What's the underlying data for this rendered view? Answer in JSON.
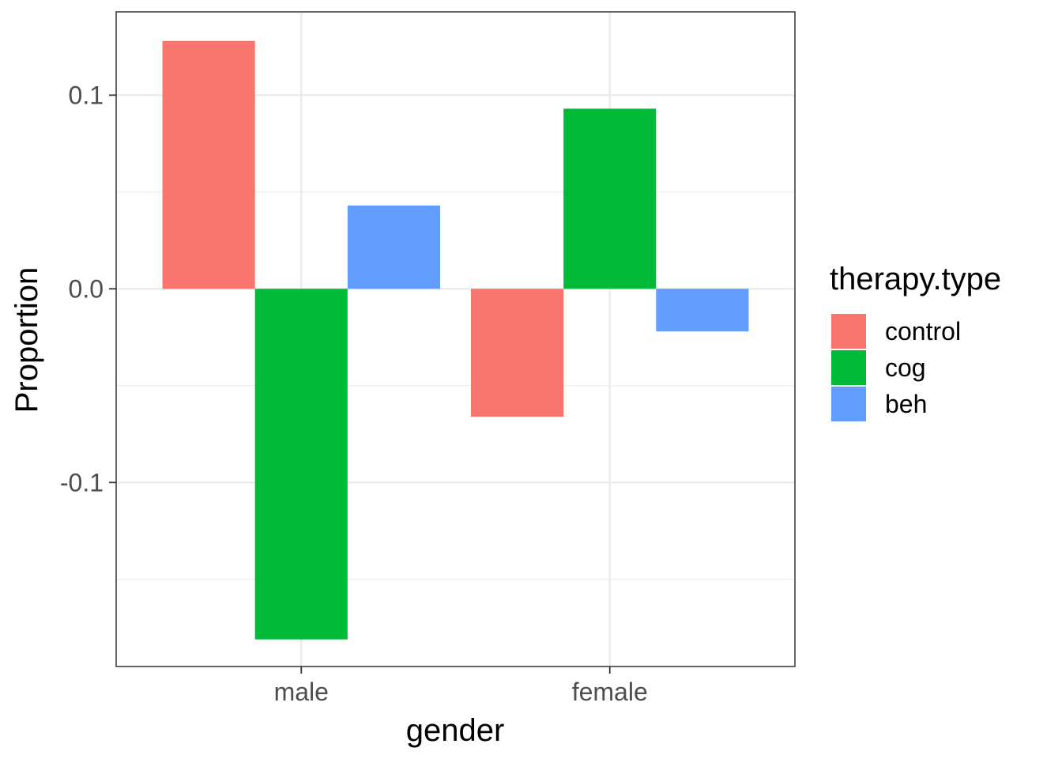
{
  "chart_data": {
    "type": "bar",
    "categories": [
      "male",
      "female"
    ],
    "series": [
      {
        "name": "control",
        "values": [
          0.128,
          -0.066
        ],
        "color": "#F8766D"
      },
      {
        "name": "cog",
        "values": [
          -0.181,
          0.093
        ],
        "color": "#00BA38"
      },
      {
        "name": "beh",
        "values": [
          0.043,
          -0.022
        ],
        "color": "#619CFF"
      }
    ],
    "xlabel": "gender",
    "ylabel": "Proportion",
    "ylim": [
      -0.195,
      0.143
    ],
    "y_ticks": [
      -0.1,
      0.0,
      0.1
    ],
    "y_tick_labels": [
      "-0.1",
      "0.0",
      "0.1"
    ],
    "legend": {
      "title": "therapy.type",
      "position": "right"
    },
    "grid": true,
    "theme": "bw"
  }
}
